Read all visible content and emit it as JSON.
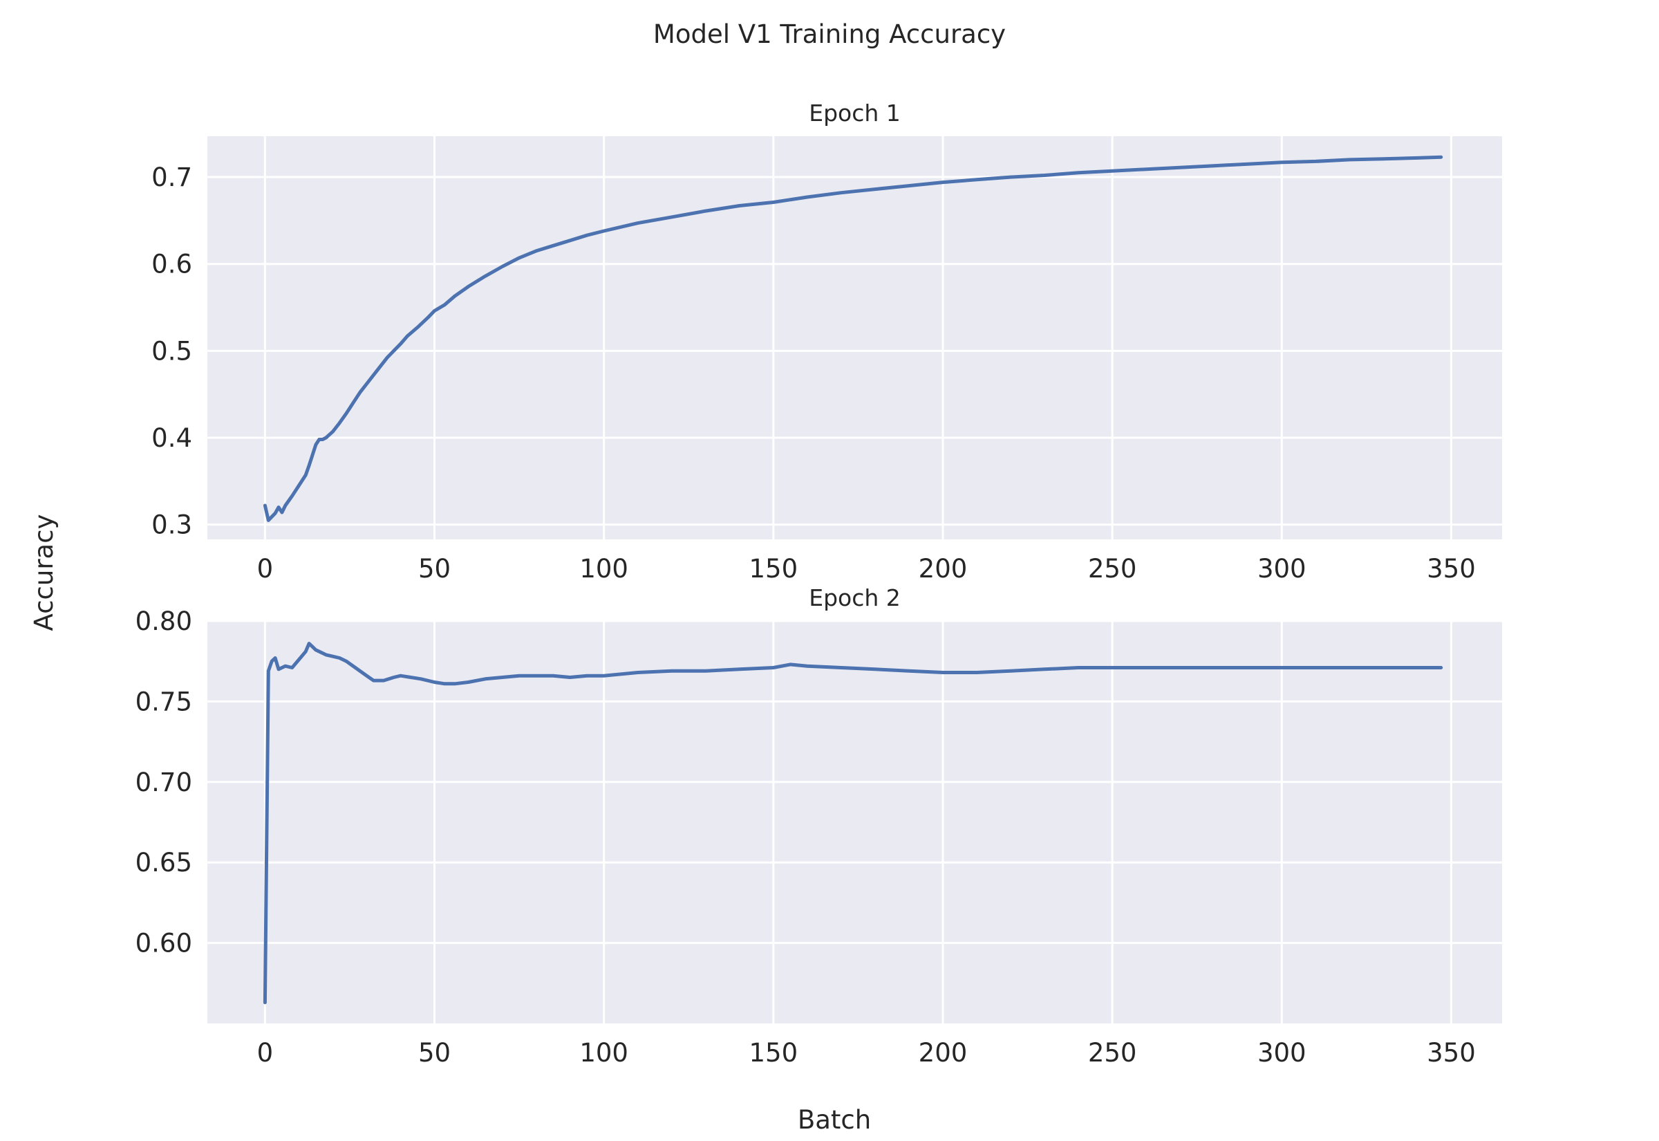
{
  "figure": {
    "title": "Model V1 Training Accuracy",
    "xlabel": "Batch",
    "ylabel": "Accuracy"
  },
  "chart_data": [
    {
      "type": "line",
      "title": "Epoch 1",
      "xlim": [
        -17,
        365
      ],
      "ylim": [
        0.283,
        0.747
      ],
      "xticks": [
        0,
        50,
        100,
        150,
        200,
        250,
        300,
        350
      ],
      "xtick_labels": [
        "0",
        "50",
        "100",
        "150",
        "200",
        "250",
        "300",
        "350"
      ],
      "yticks": [
        0.3,
        0.4,
        0.5,
        0.6,
        0.7
      ],
      "ytick_labels": [
        "0.3",
        "0.4",
        "0.5",
        "0.6",
        "0.7"
      ],
      "grid": true,
      "color": "#4c72b0",
      "x": [
        0,
        1,
        3,
        4,
        5,
        6,
        8,
        10,
        12,
        13,
        14,
        15,
        16,
        17,
        18,
        20,
        22,
        24,
        26,
        28,
        30,
        33,
        36,
        38,
        40,
        42,
        45,
        48,
        50,
        53,
        56,
        60,
        65,
        70,
        75,
        80,
        85,
        90,
        95,
        100,
        110,
        120,
        130,
        140,
        150,
        160,
        170,
        180,
        190,
        200,
        210,
        220,
        230,
        240,
        250,
        260,
        270,
        280,
        290,
        300,
        310,
        320,
        330,
        340,
        347
      ],
      "y": [
        0.322,
        0.305,
        0.313,
        0.32,
        0.314,
        0.322,
        0.333,
        0.345,
        0.357,
        0.368,
        0.38,
        0.392,
        0.398,
        0.398,
        0.4,
        0.407,
        0.417,
        0.428,
        0.44,
        0.452,
        0.462,
        0.477,
        0.492,
        0.5,
        0.508,
        0.517,
        0.527,
        0.538,
        0.546,
        0.553,
        0.563,
        0.574,
        0.586,
        0.597,
        0.607,
        0.615,
        0.621,
        0.627,
        0.633,
        0.638,
        0.647,
        0.654,
        0.661,
        0.667,
        0.671,
        0.677,
        0.682,
        0.686,
        0.69,
        0.694,
        0.697,
        0.7,
        0.702,
        0.705,
        0.707,
        0.709,
        0.711,
        0.713,
        0.715,
        0.717,
        0.718,
        0.72,
        0.721,
        0.722,
        0.723
      ]
    },
    {
      "type": "line",
      "title": "Epoch 2",
      "xlim": [
        -17,
        365
      ],
      "ylim": [
        0.55,
        0.8
      ],
      "xticks": [
        0,
        50,
        100,
        150,
        200,
        250,
        300,
        350
      ],
      "xtick_labels": [
        "0",
        "50",
        "100",
        "150",
        "200",
        "250",
        "300",
        "350"
      ],
      "yticks": [
        0.6,
        0.65,
        0.7,
        0.75,
        0.8
      ],
      "ytick_labels": [
        "0.60",
        "0.65",
        "0.70",
        "0.75",
        "0.80"
      ],
      "grid": true,
      "color": "#4c72b0",
      "x": [
        0,
        1,
        2,
        3,
        4,
        5,
        6,
        8,
        10,
        12,
        13,
        14,
        15,
        16,
        18,
        20,
        22,
        24,
        26,
        28,
        30,
        32,
        35,
        38,
        40,
        43,
        46,
        50,
        53,
        56,
        60,
        65,
        70,
        75,
        80,
        85,
        90,
        95,
        100,
        110,
        120,
        130,
        140,
        150,
        155,
        160,
        170,
        180,
        190,
        200,
        210,
        220,
        230,
        240,
        250,
        260,
        270,
        280,
        290,
        300,
        310,
        320,
        330,
        340,
        347
      ],
      "y": [
        0.563,
        0.769,
        0.775,
        0.777,
        0.77,
        0.771,
        0.772,
        0.771,
        0.776,
        0.781,
        0.786,
        0.784,
        0.782,
        0.781,
        0.779,
        0.778,
        0.777,
        0.775,
        0.772,
        0.769,
        0.766,
        0.763,
        0.763,
        0.765,
        0.766,
        0.765,
        0.764,
        0.762,
        0.761,
        0.761,
        0.762,
        0.764,
        0.765,
        0.766,
        0.766,
        0.766,
        0.765,
        0.766,
        0.766,
        0.768,
        0.769,
        0.769,
        0.77,
        0.771,
        0.773,
        0.772,
        0.771,
        0.77,
        0.769,
        0.768,
        0.768,
        0.769,
        0.77,
        0.771,
        0.771,
        0.771,
        0.771,
        0.771,
        0.771,
        0.771,
        0.771,
        0.771,
        0.771,
        0.771,
        0.771
      ]
    }
  ]
}
